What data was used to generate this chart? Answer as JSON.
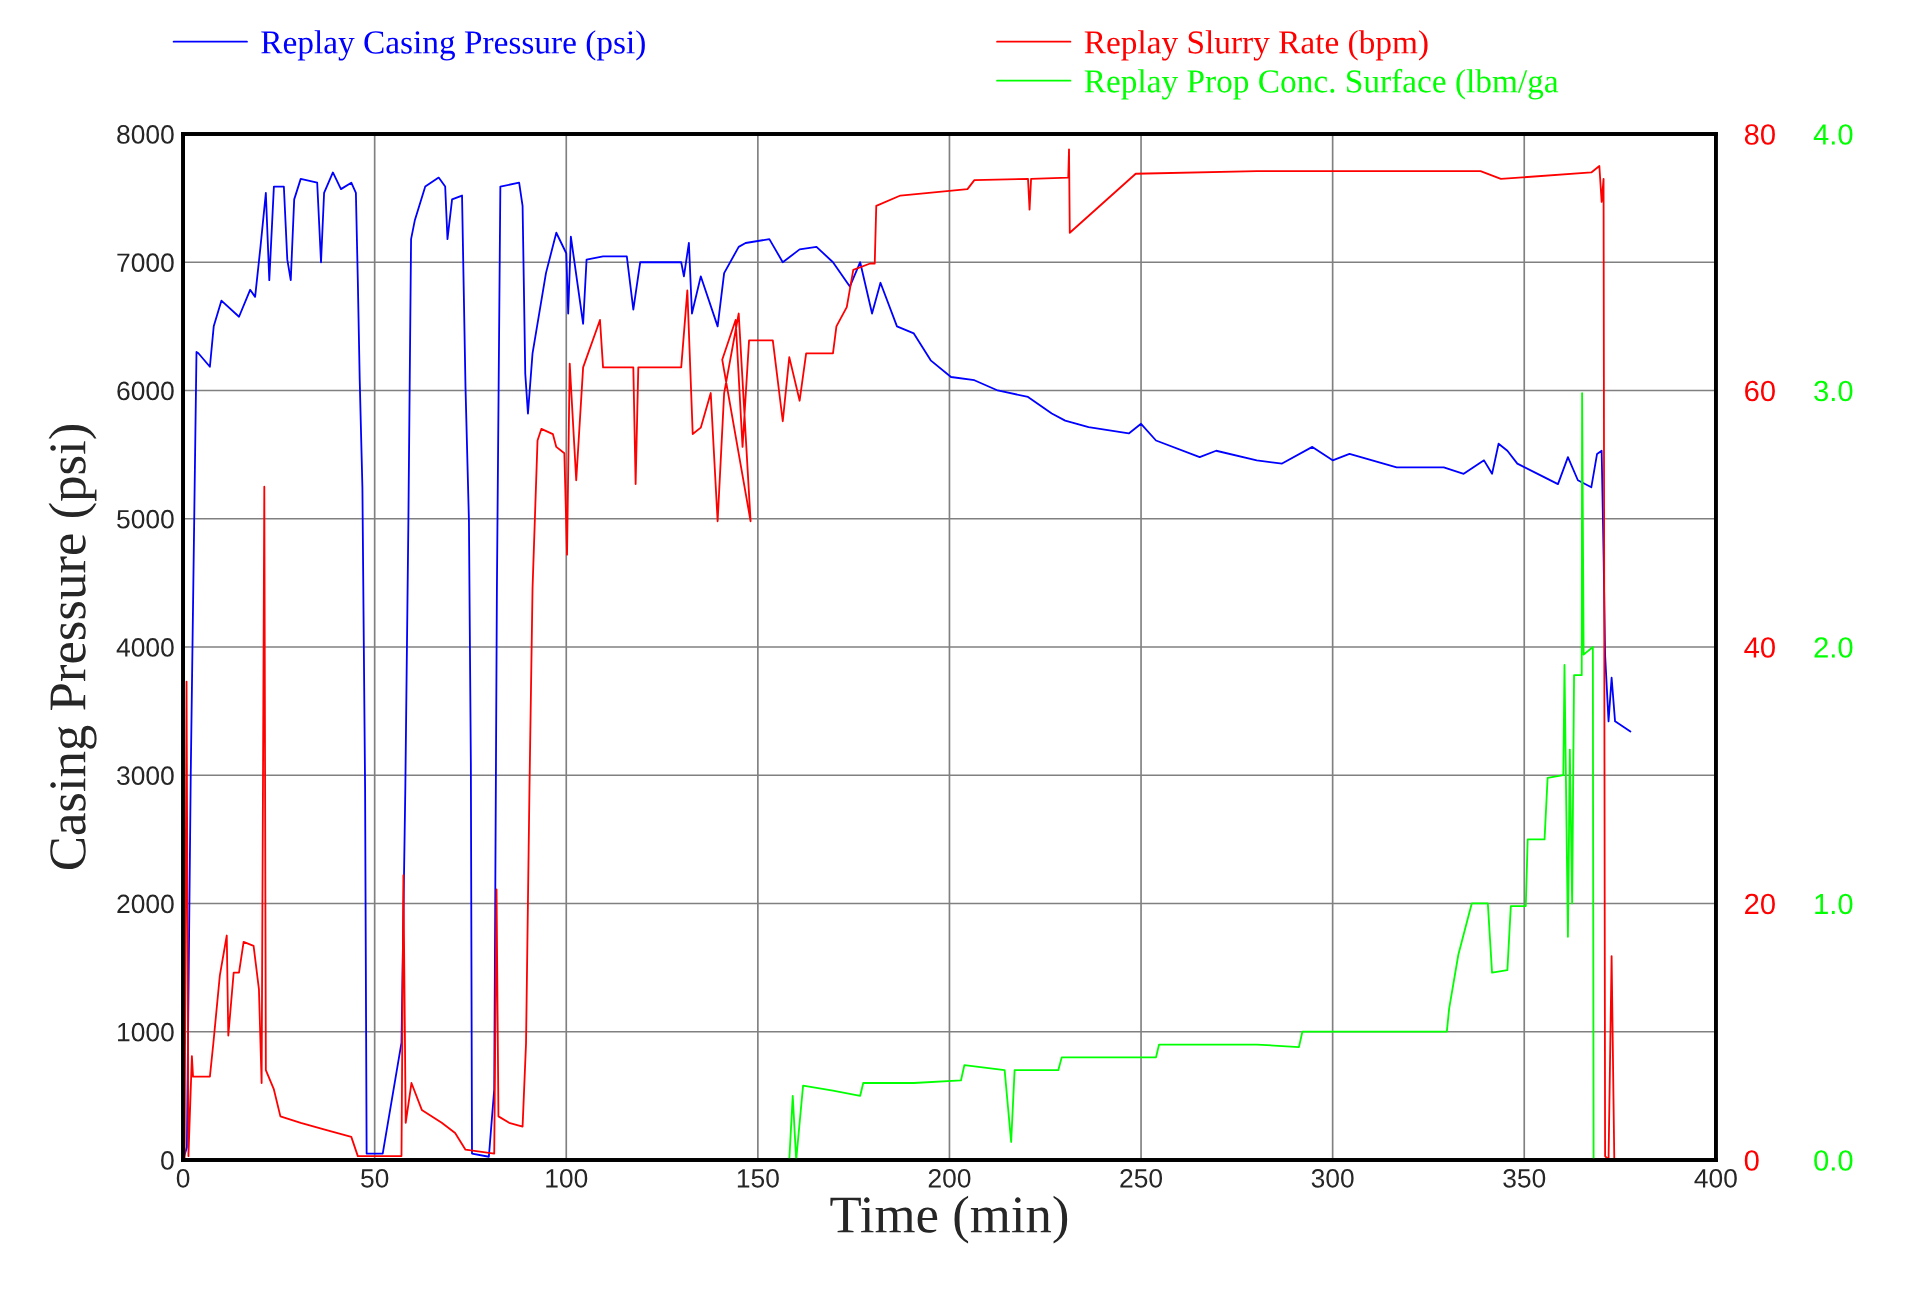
{
  "chart_data": {
    "type": "line",
    "xlabel": "Time (min)",
    "ylabel": "Casing Pressure (psi)",
    "xlim": [
      0,
      400
    ],
    "xticks": [
      0,
      50,
      100,
      150,
      200,
      250,
      300,
      350,
      400
    ],
    "ylim": [
      0,
      8000
    ],
    "yticks": [
      0,
      1000,
      2000,
      3000,
      4000,
      5000,
      6000,
      7000,
      8000
    ],
    "y2lim": [
      0,
      80
    ],
    "y2ticks": [
      0,
      20,
      40,
      60,
      80
    ],
    "y3lim": [
      0,
      4
    ],
    "y3ticks": [
      {
        "value": 0,
        "label": "0.0"
      },
      {
        "value": 1,
        "label": "1.0"
      },
      {
        "value": 2,
        "label": "2.0"
      },
      {
        "value": 3,
        "label": "3.0"
      },
      {
        "value": 4,
        "label": "4.0"
      }
    ],
    "grid": true,
    "legend": "top",
    "series": [
      {
        "name": "Replay Casing Pressure (psi)",
        "color": "#0000ff",
        "axis": "y",
        "x": [
          0,
          1,
          2,
          3.5,
          4,
          7,
          8,
          10,
          14.6,
          17.5,
          18.8,
          20.2,
          21.6,
          22.5,
          23.7,
          26.3,
          27.2,
          28.1,
          29,
          30.7,
          35,
          36,
          36.8,
          39.1,
          41.2,
          43.9,
          45.1,
          45.6,
          46.1,
          46.8,
          47.5,
          47.9,
          52.1,
          57,
          58,
          58.8,
          59.5,
          60.5,
          63.2,
          66.7,
          68.4,
          69,
          70.2,
          72.8,
          73.7,
          74.6,
          75.1,
          75.4,
          79.8,
          81.2,
          81.9,
          82.8,
          87.7,
          88.6,
          89.3,
          90,
          91.2,
          94.7,
          97.4,
          100,
          100.5,
          101.2,
          104.4,
          105.3,
          109.6,
          115.8,
          117.5,
          119.3,
          130,
          130.7,
          132,
          132.8,
          135.1,
          139.5,
          141.2,
          145,
          146.8,
          153,
          156.5,
          160.9,
          165.3,
          169.6,
          174,
          176.7,
          179.8,
          182,
          186.3,
          190.7,
          195.1,
          200.4,
          206.5,
          212.6,
          220.5,
          226.7,
          230.2,
          236.3,
          246.8,
          250,
          253.9,
          265.3,
          269.6,
          280.2,
          286.8,
          294.7,
          300,
          304.4,
          316.7,
          329,
          334.2,
          339.5,
          341.6,
          343.3,
          345.6,
          348.2,
          353.5,
          358.8,
          361.4,
          364,
          367.5,
          369,
          370.2,
          370.7,
          371.1,
          372,
          372.8,
          373.7,
          377.7
        ],
        "values": [
          0,
          100,
          3000,
          6300,
          6290,
          6185,
          6500,
          6700,
          6575,
          6785,
          6730,
          7120,
          7540,
          6860,
          7590,
          7590,
          7020,
          6860,
          7490,
          7650,
          7620,
          7000,
          7540,
          7700,
          7570,
          7620,
          7540,
          6860,
          6080,
          5245,
          2900,
          50,
          50,
          915,
          2900,
          4985,
          7180,
          7330,
          7590,
          7660,
          7590,
          7180,
          7490,
          7520,
          6030,
          4985,
          3105,
          50,
          25,
          550,
          4460,
          7590,
          7620,
          7440,
          6130,
          5820,
          6290,
          6915,
          7230,
          7070,
          6600,
          7200,
          6520,
          7020,
          7045,
          7045,
          6630,
          7000,
          7000,
          6890,
          7150,
          6600,
          6890,
          6500,
          6915,
          7120,
          7150,
          7180,
          7000,
          7100,
          7120,
          7000,
          6810,
          7000,
          6600,
          6840,
          6500,
          6445,
          6235,
          6105,
          6080,
          6000,
          5950,
          5820,
          5765,
          5715,
          5665,
          5740,
          5610,
          5480,
          5530,
          5455,
          5430,
          5560,
          5455,
          5505,
          5400,
          5400,
          5350,
          5455,
          5350,
          5585,
          5530,
          5430,
          5350,
          5270,
          5480,
          5300,
          5245,
          5505,
          5530,
          4725,
          3940,
          3420,
          3760,
          3420,
          3340
        ]
      },
      {
        "name": "Replay Slurry Rate (bpm)",
        "color": "#ff0000",
        "axis": "y2",
        "x": [
          0.4,
          0.9,
          1.4,
          2.3,
          2.6,
          7,
          7.9,
          9.6,
          11.4,
          11.8,
          13.2,
          14.6,
          15.8,
          18.4,
          19.8,
          20.5,
          21.2,
          21.6,
          23.7,
          25.4,
          30.7,
          37.7,
          43.9,
          45.6,
          57,
          57.5,
          58.1,
          59.6,
          62.3,
          67.5,
          71,
          73.7,
          81.2,
          81.8,
          82.3,
          85.1,
          88.6,
          89.5,
          90.4,
          91.2,
          92.5,
          93.5,
          96.5,
          97.4,
          99.5,
          100.2,
          100.9,
          102.6,
          104.4,
          108.8,
          109.6,
          117.5,
          118.1,
          118.8,
          130,
          131.6,
          133,
          135.1,
          137.7,
          139.5,
          141.2,
          145,
          148.1,
          140.7,
          144.2,
          146,
          147.7,
          153.9,
          156.5,
          158.2,
          160.9,
          162.6,
          169.6,
          170.5,
          173.2,
          174.9,
          179.3,
          180.5,
          180.9,
          187.2,
          204.7,
          206.5,
          220.5,
          220.9,
          221.3,
          231,
          231.2,
          231.4,
          248.6,
          280.2,
          295.6,
          338.6,
          343.9,
          367.5,
          369.6,
          370.2,
          370.7,
          371.1,
          372,
          372.8,
          373.5
        ],
        "values": [
          0,
          37.3,
          0.3,
          8.1,
          6.5,
          6.5,
          9.1,
          14.4,
          17.5,
          9.7,
          14.6,
          14.6,
          17,
          16.7,
          13.3,
          6,
          52.5,
          7,
          5.5,
          3.4,
          2.9,
          2.3,
          1.8,
          0.3,
          0.3,
          22.2,
          2.9,
          6,
          3.9,
          2.9,
          2.1,
          0.8,
          0.5,
          21.1,
          3.4,
          2.9,
          2.6,
          9.1,
          29,
          44.6,
          56.1,
          57,
          56.6,
          55.6,
          55.1,
          47.2,
          62.1,
          53,
          61.8,
          65.5,
          61.8,
          61.8,
          52.7,
          61.8,
          61.8,
          67.8,
          56.6,
          57.1,
          59.8,
          49.8,
          59.8,
          66,
          49.8,
          62.4,
          65.5,
          55.6,
          63.9,
          63.9,
          57.6,
          62.6,
          59.2,
          62.9,
          62.9,
          65,
          66.5,
          69.4,
          69.9,
          69.9,
          74.4,
          75.2,
          75.7,
          76.4,
          76.5,
          74.1,
          76.5,
          76.6,
          78.8,
          72.3,
          76.9,
          77.1,
          77.1,
          77.1,
          76.5,
          77,
          77.5,
          74.7,
          76.5,
          0.3,
          0,
          15.9,
          0
        ]
      },
      {
        "name": "Replay Prop Conc. Surface (lbm/ga",
        "color": "#00ff00",
        "axis": "y3",
        "x": [
          158.2,
          159.1,
          160,
          161.8,
          169.6,
          176.7,
          177.5,
          190.7,
          203,
          203.9,
          214.4,
          216.1,
          217,
          228.4,
          229.3,
          253.9,
          254.7,
          280.2,
          291.2,
          292.1,
          329.8,
          330.4,
          332.8,
          336.3,
          340.5,
          341.6,
          345.6,
          346.5,
          350.4,
          350.9,
          355.3,
          356.1,
          360.2,
          360.5,
          361.4,
          361.9,
          362.5,
          363,
          365,
          365.1,
          365.5,
          367.9,
          368.1
        ],
        "values": [
          0,
          0.25,
          0,
          0.29,
          0.27,
          0.25,
          0.3,
          0.3,
          0.31,
          0.37,
          0.35,
          0.07,
          0.35,
          0.35,
          0.4,
          0.4,
          0.45,
          0.45,
          0.44,
          0.5,
          0.5,
          0.59,
          0.8,
          1.0,
          1.0,
          0.73,
          0.74,
          0.99,
          0.99,
          1.25,
          1.25,
          1.49,
          1.5,
          1.93,
          0.87,
          1.6,
          1.0,
          1.89,
          1.89,
          2.99,
          1.97,
          2.0,
          0
        ]
      }
    ]
  }
}
